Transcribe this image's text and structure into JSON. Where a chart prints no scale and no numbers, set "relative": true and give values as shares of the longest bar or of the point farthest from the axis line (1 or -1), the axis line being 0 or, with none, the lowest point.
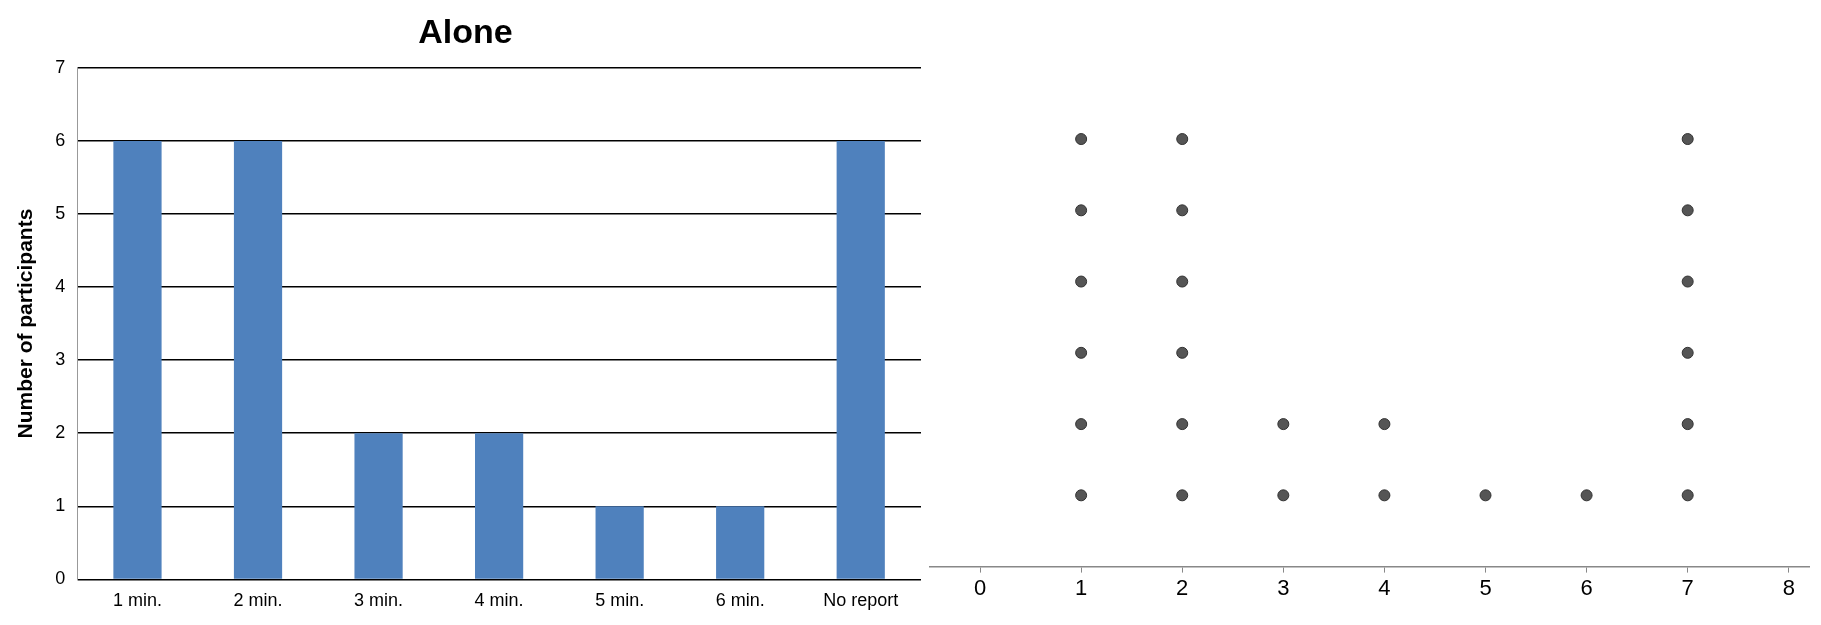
{
  "chart_data": [
    {
      "type": "bar",
      "title": "Alone",
      "ylabel": "Number of participants",
      "categories": [
        "1 min.",
        "2 min.",
        "3 min.",
        "4 min.",
        "5 min.",
        "6 min.",
        "No report"
      ],
      "values": [
        6,
        6,
        2,
        2,
        1,
        1,
        6
      ],
      "color": "#4f81bd",
      "ylim": [
        0,
        7
      ],
      "yticks": [
        0,
        1,
        2,
        3,
        4,
        5,
        6,
        7
      ],
      "grid": "y"
    },
    {
      "type": "scatter",
      "x": [
        1,
        1,
        1,
        1,
        1,
        1,
        2,
        2,
        2,
        2,
        2,
        2,
        3,
        3,
        4,
        4,
        5,
        6,
        7,
        7,
        7,
        7,
        7,
        7
      ],
      "relative": true,
      "values": [
        0.1667,
        0.3333,
        0.5,
        0.6667,
        0.8333,
        1,
        0.1667,
        0.3333,
        0.5,
        0.6667,
        0.8333,
        1,
        0.1667,
        0.3333,
        0.1667,
        0.3333,
        0.1667,
        0.1667,
        0.1667,
        0.3333,
        0.5,
        0.6667,
        0.8333,
        1
      ],
      "color": "#555555",
      "marker": "circle",
      "xlim": [
        -0.5,
        8.2
      ],
      "xticks": [
        0,
        1,
        2,
        3,
        4,
        5,
        6,
        7,
        8
      ],
      "tick_labels": "x",
      "grid": false
    }
  ]
}
